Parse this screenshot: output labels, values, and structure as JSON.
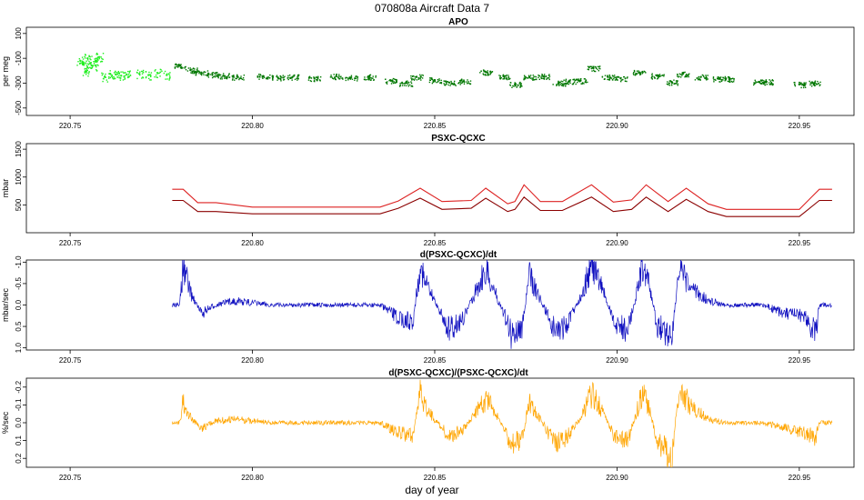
{
  "figure": {
    "title": "070808a   Aircraft Data 7",
    "xlabel": "day of year"
  },
  "chart_data": [
    {
      "type": "scatter",
      "title": "APO",
      "ylabel": "per meg",
      "xlim": [
        220.738,
        220.965
      ],
      "ylim": [
        -560,
        150
      ],
      "reversed": false,
      "yticks": [
        100,
        -100,
        -300,
        -500
      ],
      "xticks": [
        220.75,
        220.8,
        220.85,
        220.9,
        220.95
      ],
      "series": [
        {
          "color": "#22ee22",
          "x": [
            220.7528,
            220.7535,
            220.7542,
            220.7548,
            220.7555,
            220.7562,
            220.757,
            220.758,
            220.7595,
            220.761,
            220.7625,
            220.764,
            220.7655,
            220.769,
            220.7715,
            220.774,
            220.7765
          ],
          "y": [
            -120,
            -150,
            -210,
            -100,
            -140,
            -160,
            -120,
            -90,
            -250,
            -225,
            -230,
            -240,
            -230,
            -225,
            -235,
            -220,
            -235
          ]
        },
        {
          "color": "#007700",
          "x": [
            220.78,
            220.783,
            220.786,
            220.789,
            220.792,
            220.796,
            220.803,
            220.807,
            220.811,
            220.817,
            220.823,
            220.827,
            220.832,
            220.838,
            220.842,
            220.845,
            220.85,
            220.854,
            220.858,
            220.864,
            220.869,
            220.872,
            220.876,
            220.88,
            220.884,
            220.887,
            220.89,
            220.8935,
            220.8975,
            220.901,
            220.906,
            220.911,
            220.915,
            220.918,
            220.923,
            220.928,
            220.931,
            220.939,
            220.941,
            220.95,
            220.954
          ],
          "y": [
            -160,
            -195,
            -215,
            -230,
            -240,
            -250,
            -245,
            -255,
            -250,
            -260,
            -245,
            -255,
            -250,
            -280,
            -300,
            -250,
            -275,
            -295,
            -285,
            -210,
            -245,
            -310,
            -250,
            -245,
            -300,
            -285,
            -280,
            -180,
            -250,
            -260,
            -215,
            -240,
            -290,
            -225,
            -250,
            -265,
            -265,
            -290,
            -290,
            -310,
            -300
          ]
        }
      ]
    },
    {
      "type": "line",
      "title": "PSXC-QCXC",
      "ylabel": "mbar",
      "xlim": [
        220.738,
        220.965
      ],
      "ylim": [
        0,
        1600
      ],
      "reversed": false,
      "yticks": [
        500,
        1000,
        1500
      ],
      "xticks": [
        220.75,
        220.8,
        220.85,
        220.9,
        220.95
      ],
      "series": [
        {
          "color": "#dd2222",
          "x": [
            220.778,
            220.781,
            220.785,
            220.79,
            220.8,
            220.835,
            220.84,
            220.846,
            220.852,
            220.86,
            220.864,
            220.87,
            220.872,
            220.8745,
            220.879,
            220.885,
            220.893,
            220.899,
            220.904,
            220.908,
            220.914,
            220.919,
            220.925,
            220.93,
            220.945,
            220.95,
            220.9555,
            220.959
          ],
          "y": [
            780,
            780,
            540,
            540,
            460,
            460,
            570,
            800,
            560,
            580,
            800,
            520,
            560,
            860,
            560,
            560,
            860,
            550,
            590,
            860,
            560,
            800,
            520,
            420,
            420,
            420,
            780,
            780
          ]
        },
        {
          "color": "#8b0000",
          "x": [
            220.778,
            220.781,
            220.785,
            220.79,
            220.8,
            220.835,
            220.84,
            220.846,
            220.852,
            220.86,
            220.864,
            220.87,
            220.872,
            220.8745,
            220.879,
            220.885,
            220.893,
            220.899,
            220.904,
            220.908,
            220.914,
            220.919,
            220.925,
            220.93,
            220.945,
            220.95,
            220.9555,
            220.959
          ],
          "y": [
            580,
            580,
            380,
            380,
            340,
            340,
            440,
            620,
            420,
            440,
            620,
            380,
            420,
            640,
            400,
            400,
            640,
            380,
            420,
            640,
            380,
            600,
            380,
            290,
            290,
            290,
            580,
            580
          ]
        }
      ]
    },
    {
      "type": "line",
      "title": "d(PSXC-QCXC)/dt",
      "ylabel": "mbar/sec",
      "xlim": [
        220.738,
        220.965
      ],
      "ylim": [
        1.05,
        -1.05
      ],
      "reversed": true,
      "yticks": [
        -1.0,
        -0.5,
        0.0,
        0.5,
        1.0
      ],
      "xticks": [
        220.75,
        220.8,
        220.85,
        220.9,
        220.95
      ],
      "series": [
        {
          "color": "#1010c0",
          "x": [
            220.778,
            220.78,
            220.781,
            220.783,
            220.786,
            220.79,
            220.795,
            220.805,
            220.835,
            220.84,
            220.844,
            220.846,
            220.848,
            220.85,
            220.854,
            220.858,
            220.861,
            220.864,
            220.866,
            220.869,
            220.871,
            220.874,
            220.876,
            220.878,
            220.883,
            220.886,
            220.89,
            220.893,
            220.896,
            220.899,
            220.903,
            220.907,
            220.909,
            220.911,
            220.915,
            220.917,
            220.92,
            220.925,
            220.93,
            220.94,
            220.946,
            220.952,
            220.9545,
            220.9555,
            220.959
          ],
          "y": [
            0.0,
            0.0,
            -0.9,
            -0.3,
            0.2,
            0.0,
            -0.1,
            0.0,
            0.0,
            0.3,
            0.4,
            -0.9,
            -0.4,
            -0.1,
            0.6,
            0.3,
            -0.3,
            -0.8,
            -0.4,
            0.2,
            0.7,
            0.5,
            -0.7,
            -0.3,
            0.6,
            0.5,
            -0.2,
            -0.9,
            -0.4,
            0.4,
            0.6,
            -0.9,
            -0.4,
            0.5,
            0.7,
            -0.8,
            -0.4,
            -0.1,
            0.0,
            0.0,
            0.2,
            0.3,
            0.7,
            0.0,
            0.0
          ]
        }
      ]
    },
    {
      "type": "line",
      "title": "d(PSXC-QCXC)/(PSXC-QCXC)/dt",
      "ylabel": "%/sec",
      "xlim": [
        220.738,
        220.965
      ],
      "ylim": [
        0.25,
        -0.25
      ],
      "reversed": true,
      "yticks": [
        -0.2,
        -0.1,
        0.0,
        0.1,
        0.2
      ],
      "xticks": [
        220.75,
        220.8,
        220.85,
        220.9,
        220.95
      ],
      "series": [
        {
          "color": "#ffa500",
          "x": [
            220.778,
            220.78,
            220.781,
            220.783,
            220.786,
            220.79,
            220.795,
            220.805,
            220.835,
            220.84,
            220.844,
            220.846,
            220.848,
            220.85,
            220.854,
            220.858,
            220.861,
            220.864,
            220.866,
            220.869,
            220.871,
            220.874,
            220.876,
            220.878,
            220.883,
            220.886,
            220.89,
            220.893,
            220.896,
            220.899,
            220.903,
            220.907,
            220.909,
            220.911,
            220.915,
            220.917,
            220.92,
            220.925,
            220.93,
            220.94,
            220.946,
            220.952,
            220.9545,
            220.9555,
            220.959
          ],
          "y": [
            0.0,
            0.0,
            -0.12,
            -0.03,
            0.03,
            -0.01,
            -0.02,
            0.0,
            0.0,
            0.06,
            0.07,
            -0.16,
            -0.07,
            -0.02,
            0.08,
            0.04,
            -0.05,
            -0.14,
            -0.07,
            0.03,
            0.12,
            0.09,
            -0.13,
            -0.05,
            0.12,
            0.09,
            -0.03,
            -0.16,
            -0.07,
            0.07,
            0.1,
            -0.17,
            -0.07,
            0.1,
            0.2,
            -0.2,
            -0.1,
            -0.02,
            0.0,
            0.0,
            0.03,
            0.06,
            0.09,
            0.0,
            0.0
          ]
        }
      ]
    }
  ]
}
